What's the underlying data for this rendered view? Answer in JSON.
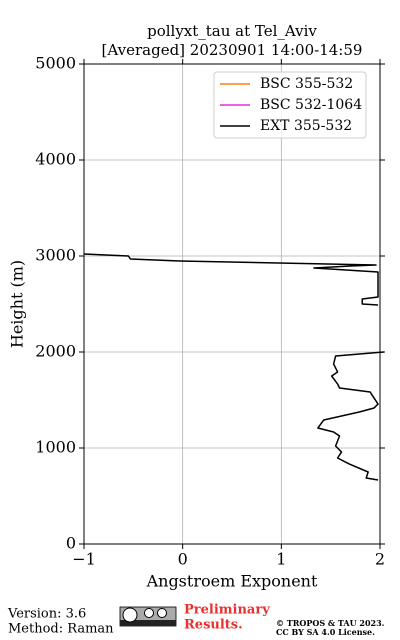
{
  "chart_data": {
    "type": "line",
    "title": "pollyxt_tau at Tel_Aviv",
    "subtitle": "[Averaged] 20230901 14:00-14:59",
    "xlabel": "Angstroem Exponent",
    "ylabel": "Height (m)",
    "y": [
      3021,
      3000,
      2969,
      2948,
      2906,
      2896,
      2875,
      2833,
      2573,
      2552,
      2500,
      2490,
      2250,
      2000,
      1958,
      1875,
      1792,
      1750,
      1667,
      1625,
      1583,
      1458,
      1417,
      1375,
      1292,
      1208,
      1167,
      1125,
      1021,
      958,
      896,
      833,
      750,
      688,
      667
    ],
    "series": [
      {
        "name": "BSC 355-532",
        "color": "#ff7f0e",
        "values": [
          null,
          null,
          null,
          null,
          null,
          null,
          null,
          null,
          null,
          null,
          null,
          null,
          null,
          null,
          null,
          null,
          null,
          null,
          null,
          null,
          null,
          null,
          null,
          null,
          null,
          null,
          null,
          null,
          null,
          null,
          null,
          null,
          null,
          null,
          null
        ]
      },
      {
        "name": "BSC 532-1064",
        "color": "#e62be6",
        "values": [
          null,
          null,
          null,
          null,
          null,
          null,
          null,
          null,
          null,
          null,
          null,
          null,
          null,
          null,
          null,
          null,
          null,
          null,
          null,
          null,
          null,
          null,
          null,
          null,
          null,
          null,
          null,
          null,
          null,
          null,
          null,
          null,
          null,
          null,
          null
        ]
      },
      {
        "name": "EXT 355-532",
        "color": "#000000",
        "values": [
          -1,
          -0.55,
          -0.53,
          -0.03,
          1.96,
          1.7,
          1.33,
          1.98,
          1.98,
          1.82,
          1.82,
          1.98,
          null,
          2.04,
          1.55,
          1.53,
          1.57,
          1.51,
          1.57,
          1.59,
          1.9,
          1.98,
          1.94,
          1.79,
          1.43,
          1.37,
          1.53,
          1.59,
          1.55,
          1.61,
          1.57,
          1.69,
          1.88,
          1.86,
          1.98
        ]
      }
    ],
    "xlim": [
      -1,
      2
    ],
    "xticks": [
      {
        "value": -1,
        "label": "−1"
      },
      0,
      1,
      2
    ],
    "ylim": [
      0,
      5000
    ],
    "yticks": [
      0,
      1000,
      2000,
      3000,
      4000,
      5000
    ],
    "grid": true,
    "legend": "upper right"
  },
  "footer": {
    "version": "Version: 3.6",
    "method": "Method: Raman",
    "status": [
      "Preliminary",
      "Results."
    ],
    "copyright": [
      "© TROPOS & TAU 2023.",
      "CC BY SA 4.0 License."
    ]
  }
}
